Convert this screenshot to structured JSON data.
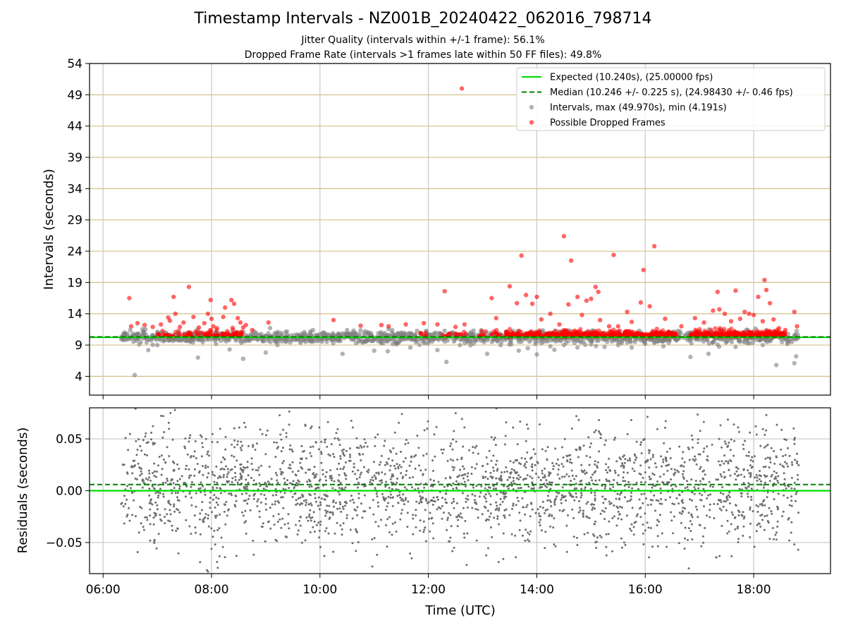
{
  "chart_data": [
    {
      "type": "scatter",
      "title": "Timestamp Intervals - NZ001B_20240422_062016_798714",
      "subtitle_1": "Jitter Quality (intervals within +/-1 frame): 56.1%",
      "subtitle_2": "Dropped Frame Rate (intervals >1 frames late within 50 FF files): 49.8%",
      "xlabel": "",
      "ylabel": "Intervals (seconds)",
      "xlim": [
        "05:45",
        "19:25"
      ],
      "ylim": [
        1.0,
        54.0
      ],
      "yticks": [
        "4",
        "9",
        "14",
        "19",
        "24",
        "29",
        "34",
        "39",
        "44",
        "49",
        "54"
      ],
      "xticks": [
        "06:00",
        "08:00",
        "10:00",
        "12:00",
        "14:00",
        "16:00",
        "18:00"
      ],
      "grid": true,
      "legend_position": "top-right",
      "colors": {
        "expected": "#00e000",
        "median": "#007f00",
        "intervals": "#808080",
        "dropped": "#ff0000",
        "hgrid": "#d4c08a",
        "vgrid": "#c8c8c8"
      },
      "legend": [
        {
          "label": "Expected (10.240s), (25.00000 fps)",
          "kind": "solid-line",
          "color": "#00e000"
        },
        {
          "label": "Median (10.246 +/- 0.225 s), (24.98430 +/- 0.46 fps)",
          "kind": "dashed-line",
          "color": "#007f00"
        },
        {
          "label": "Intervals, max (49.970s), min (4.191s)",
          "kind": "dot",
          "color": "#808080"
        },
        {
          "label": "Possible Dropped Frames",
          "kind": "dot",
          "color": "#ff0000"
        }
      ],
      "expected_line": 10.24,
      "median_line": 10.246,
      "series": [
        {
          "name": "Intervals, max (49.970s), min (4.191s)",
          "points": [
            [
              "06:20",
              10.3
            ],
            [
              "06:25",
              9.8
            ],
            [
              "06:30",
              11.4
            ],
            [
              "06:35",
              4.2
            ],
            [
              "06:40",
              9.1
            ],
            [
              "06:45",
              10.8
            ],
            [
              "06:50",
              8.2
            ],
            [
              "07:00",
              9.0
            ],
            [
              "07:05",
              11.0
            ],
            [
              "07:45",
              7.0
            ],
            [
              "08:05",
              9.2
            ],
            [
              "08:20",
              8.3
            ],
            [
              "08:35",
              6.8
            ],
            [
              "09:00",
              7.8
            ],
            [
              "09:10",
              10.9
            ],
            [
              "09:30",
              10.1
            ],
            [
              "09:50",
              9.7
            ],
            [
              "10:10",
              10.6
            ],
            [
              "10:25",
              7.6
            ],
            [
              "10:30",
              11.4
            ],
            [
              "10:40",
              9.3
            ],
            [
              "10:50",
              11.2
            ],
            [
              "11:00",
              8.1
            ],
            [
              "11:10",
              9.3
            ],
            [
              "11:15",
              8.0
            ],
            [
              "11:25",
              9.4
            ],
            [
              "11:40",
              8.6
            ],
            [
              "11:55",
              9.5
            ],
            [
              "12:10",
              8.2
            ],
            [
              "12:20",
              6.3
            ],
            [
              "12:35",
              9.0
            ],
            [
              "12:50",
              11.3
            ],
            [
              "13:00",
              11.1
            ],
            [
              "13:05",
              7.6
            ],
            [
              "13:20",
              9.0
            ],
            [
              "13:40",
              8.1
            ],
            [
              "13:50",
              8.5
            ],
            [
              "14:00",
              7.5
            ],
            [
              "14:05",
              9.3
            ],
            [
              "14:15",
              8.8
            ],
            [
              "14:30",
              9.0
            ],
            [
              "14:45",
              8.6
            ],
            [
              "15:00",
              9.1
            ],
            [
              "15:15",
              8.7
            ],
            [
              "15:30",
              9.0
            ],
            [
              "15:45",
              8.6
            ],
            [
              "16:00",
              9.2
            ],
            [
              "16:20",
              8.8
            ],
            [
              "16:30",
              10.8
            ],
            [
              "16:50",
              7.1
            ],
            [
              "17:10",
              7.6
            ],
            [
              "17:20",
              9.1
            ],
            [
              "17:40",
              8.7
            ],
            [
              "17:55",
              9.3
            ],
            [
              "18:10",
              9.0
            ],
            [
              "18:25",
              5.8
            ],
            [
              "18:45",
              6.1
            ],
            [
              "18:47",
              7.2
            ]
          ]
        },
        {
          "name": "Possible Dropped Frames",
          "points": [
            [
              "06:29",
              16.5
            ],
            [
              "06:31",
              12.0
            ],
            [
              "06:38",
              12.5
            ],
            [
              "06:46",
              12.2
            ],
            [
              "06:55",
              11.9
            ],
            [
              "07:04",
              12.3
            ],
            [
              "07:12",
              13.4
            ],
            [
              "07:14",
              12.9
            ],
            [
              "07:18",
              16.7
            ],
            [
              "07:20",
              14.0
            ],
            [
              "07:25",
              11.9
            ],
            [
              "07:29",
              12.6
            ],
            [
              "07:35",
              18.3
            ],
            [
              "07:40",
              13.5
            ],
            [
              "07:46",
              11.8
            ],
            [
              "07:52",
              12.5
            ],
            [
              "07:56",
              14.0
            ],
            [
              "08:00",
              13.2
            ],
            [
              "07:59",
              16.2
            ],
            [
              "08:02",
              12.0
            ],
            [
              "08:06",
              11.7
            ],
            [
              "08:13",
              13.5
            ],
            [
              "08:15",
              15.0
            ],
            [
              "08:22",
              16.2
            ],
            [
              "08:25",
              15.6
            ],
            [
              "08:29",
              13.3
            ],
            [
              "08:32",
              12.6
            ],
            [
              "08:35",
              11.8
            ],
            [
              "08:38",
              12.2
            ],
            [
              "08:45",
              11.4
            ],
            [
              "09:03",
              12.6
            ],
            [
              "10:15",
              13.0
            ],
            [
              "10:45",
              12.1
            ],
            [
              "11:08",
              12.2
            ],
            [
              "11:16",
              12.0
            ],
            [
              "11:35",
              12.3
            ],
            [
              "11:55",
              12.5
            ],
            [
              "12:10",
              12.3
            ],
            [
              "12:18",
              17.6
            ],
            [
              "12:30",
              11.9
            ],
            [
              "12:40",
              12.3
            ],
            [
              "12:37",
              50.0
            ],
            [
              "13:10",
              16.5
            ],
            [
              "13:15",
              13.3
            ],
            [
              "13:30",
              18.4
            ],
            [
              "13:38",
              15.7
            ],
            [
              "13:43",
              23.3
            ],
            [
              "13:48",
              17.0
            ],
            [
              "13:55",
              15.6
            ],
            [
              "14:00",
              16.7
            ],
            [
              "14:05",
              13.1
            ],
            [
              "14:15",
              14.0
            ],
            [
              "14:25",
              12.3
            ],
            [
              "14:30",
              26.4
            ],
            [
              "14:35",
              15.5
            ],
            [
              "14:38",
              22.5
            ],
            [
              "14:45",
              16.7
            ],
            [
              "14:50",
              13.8
            ],
            [
              "14:55",
              16.1
            ],
            [
              "15:00",
              16.4
            ],
            [
              "15:05",
              18.3
            ],
            [
              "15:08",
              17.5
            ],
            [
              "15:10",
              13.0
            ],
            [
              "15:20",
              12.0
            ],
            [
              "15:25",
              23.4
            ],
            [
              "15:30",
              12.0
            ],
            [
              "15:40",
              14.3
            ],
            [
              "15:45",
              12.7
            ],
            [
              "15:55",
              15.8
            ],
            [
              "15:58",
              21.0
            ],
            [
              "16:05",
              15.2
            ],
            [
              "16:10",
              24.8
            ],
            [
              "16:22",
              13.2
            ],
            [
              "16:40",
              12.0
            ],
            [
              "16:55",
              13.3
            ],
            [
              "17:05",
              12.6
            ],
            [
              "17:15",
              14.5
            ],
            [
              "17:20",
              17.5
            ],
            [
              "17:22",
              14.7
            ],
            [
              "17:28",
              14.0
            ],
            [
              "17:35",
              12.8
            ],
            [
              "17:40",
              17.7
            ],
            [
              "17:45",
              13.2
            ],
            [
              "17:50",
              14.3
            ],
            [
              "17:55",
              14.0
            ],
            [
              "18:00",
              13.8
            ],
            [
              "18:05",
              16.7
            ],
            [
              "18:10",
              12.8
            ],
            [
              "18:12",
              19.4
            ],
            [
              "18:14",
              17.8
            ],
            [
              "18:18",
              15.7
            ],
            [
              "18:22",
              13.1
            ],
            [
              "18:28",
              11.7
            ],
            [
              "18:35",
              11.4
            ],
            [
              "18:45",
              14.3
            ],
            [
              "18:48",
              12.0
            ]
          ]
        }
      ]
    },
    {
      "type": "scatter",
      "xlabel": "Time (UTC)",
      "ylabel": "Residuals (seconds)",
      "xlim": [
        "05:45",
        "19:25"
      ],
      "ylim": [
        -0.08,
        0.08
      ],
      "yticks": [
        "0.05",
        "0.00",
        "−0.05"
      ],
      "xticks": [
        "06:00",
        "08:00",
        "10:00",
        "12:00",
        "14:00",
        "16:00",
        "18:00"
      ],
      "grid": true,
      "expected_line": 0.0,
      "median_line": 0.006,
      "residuals_x_range": [
        "06:20",
        "18:50"
      ],
      "residuals_spread": 0.028
    }
  ]
}
